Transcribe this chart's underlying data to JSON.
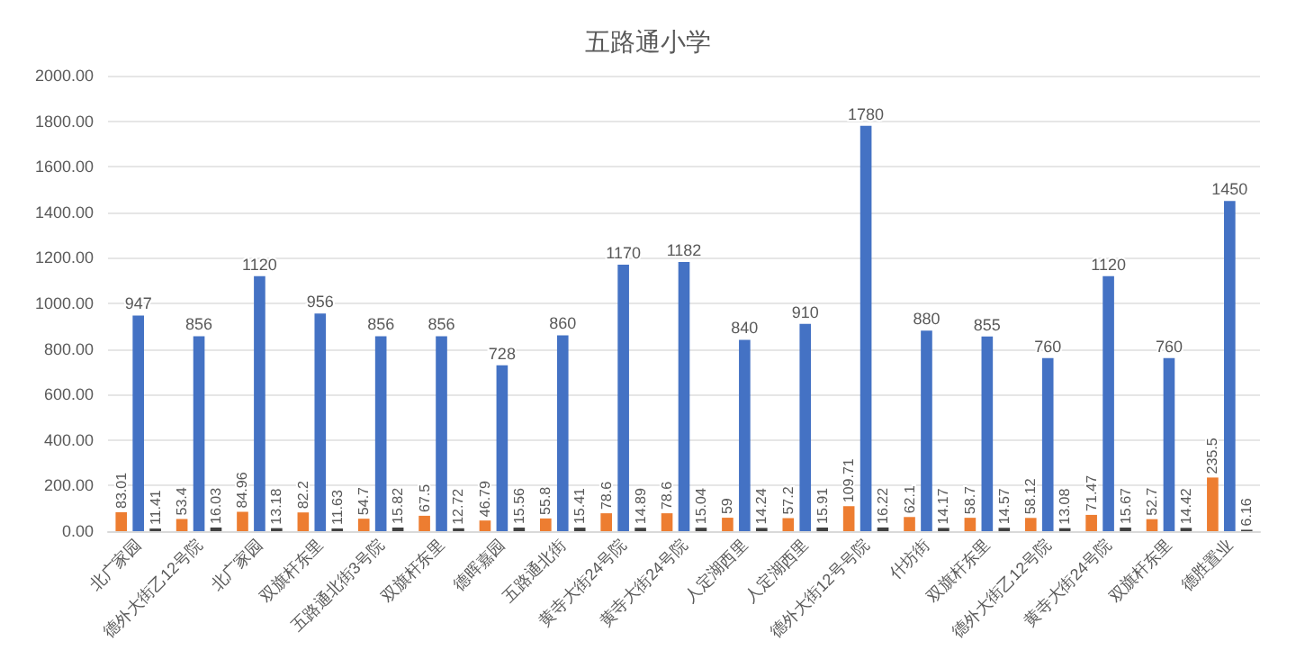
{
  "chart_data": {
    "type": "bar",
    "title": "五路通小学",
    "categories": [
      "北广家园",
      "德外大街乙12号院",
      "北广家园",
      "双旗杆东里",
      "五路通北街3号院",
      "双旗杆东里",
      "德晖嘉园",
      "五路通北街",
      "黄寺大街24号院",
      "黄寺大街24号院",
      "人定湖西里",
      "人定湖西里",
      "德外大街12号号院",
      "什坊街",
      "双旗杆东里",
      "德外大街乙12号院",
      "黄寺大街24号院",
      "双旗杆东里",
      "德胜置业"
    ],
    "series": [
      {
        "color": "#ed7d31",
        "values": [
          83.01,
          53.4,
          84.96,
          82.2,
          54.7,
          67.5,
          46.79,
          55.8,
          78.6,
          78.6,
          59,
          57.2,
          109.71,
          62.1,
          58.7,
          58.12,
          71.47,
          52.7,
          235.5
        ]
      },
      {
        "color": "#4472c4",
        "values": [
          947,
          856,
          1120,
          956,
          856,
          856,
          728,
          860,
          1170,
          1182,
          840,
          910,
          1780,
          880,
          855,
          760,
          1120,
          760,
          1450
        ]
      },
      {
        "color": "#404040",
        "values": [
          11.41,
          16.03,
          13.18,
          11.63,
          15.82,
          12.72,
          15.56,
          15.41,
          14.89,
          15.04,
          14.24,
          15.91,
          16.22,
          14.17,
          14.57,
          13.08,
          15.67,
          14.42,
          6.16
        ]
      }
    ],
    "ylim": [
      0,
      2000
    ],
    "yticks": [
      {
        "value": 0,
        "label": "0.00"
      },
      {
        "value": 200,
        "label": "200.00"
      },
      {
        "value": 400,
        "label": "400.00"
      },
      {
        "value": 600,
        "label": "600.00"
      },
      {
        "value": 800,
        "label": "800.00"
      },
      {
        "value": 1000,
        "label": "1000.00"
      },
      {
        "value": 1200,
        "label": "1200.00"
      },
      {
        "value": 1400,
        "label": "1400.00"
      },
      {
        "value": 1600,
        "label": "1600.00"
      },
      {
        "value": 1800,
        "label": "1800.00"
      },
      {
        "value": 2000,
        "label": "2000.00"
      }
    ],
    "grid": "y",
    "legend": false,
    "data_labels": true
  }
}
